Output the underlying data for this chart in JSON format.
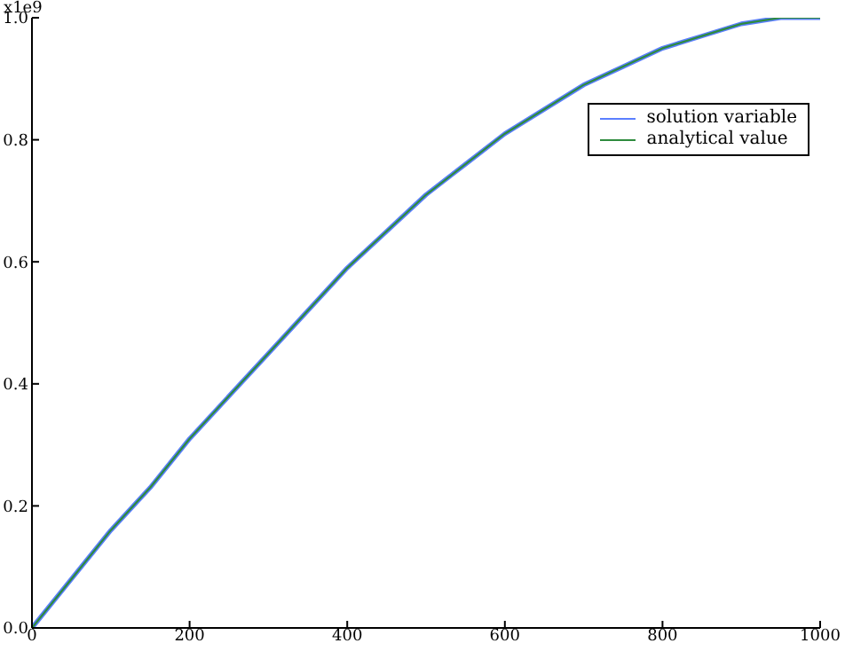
{
  "chart_data": {
    "type": "line",
    "ylabel": "x1e9",
    "x": [
      0,
      50,
      100,
      150,
      200,
      250,
      300,
      350,
      400,
      450,
      500,
      550,
      600,
      650,
      700,
      750,
      800,
      850,
      900,
      950,
      1000
    ],
    "series": [
      {
        "name": "solution variable",
        "color": "#5b7fff",
        "values": [
          0,
          0.08,
          0.16,
          0.23,
          0.31,
          0.38,
          0.45,
          0.52,
          0.59,
          0.65,
          0.71,
          0.76,
          0.81,
          0.85,
          0.89,
          0.92,
          0.95,
          0.97,
          0.99,
          1.0,
          1.0
        ]
      },
      {
        "name": "analytical value",
        "color": "#2e8b3e",
        "values": [
          0,
          0.08,
          0.16,
          0.23,
          0.31,
          0.38,
          0.45,
          0.52,
          0.59,
          0.65,
          0.71,
          0.76,
          0.81,
          0.85,
          0.89,
          0.92,
          0.95,
          0.97,
          0.99,
          1.0,
          1.0
        ]
      }
    ],
    "xlim": [
      0,
      1000
    ],
    "xticks": [
      0,
      200,
      400,
      600,
      800,
      1000
    ],
    "ylim": [
      0,
      1.0
    ],
    "yticks": [
      {
        "value": 0,
        "label": "0.0"
      },
      {
        "value": 0.2,
        "label": "0.2"
      },
      {
        "value": 0.4,
        "label": "0.4"
      },
      {
        "value": 0.6,
        "label": "0.6"
      },
      {
        "value": 0.8,
        "label": "0.8"
      },
      {
        "value": 1.0,
        "label": "1.0"
      }
    ],
    "legend": "top right",
    "grid": false,
    "marker": "none",
    "line_style": "solid"
  }
}
